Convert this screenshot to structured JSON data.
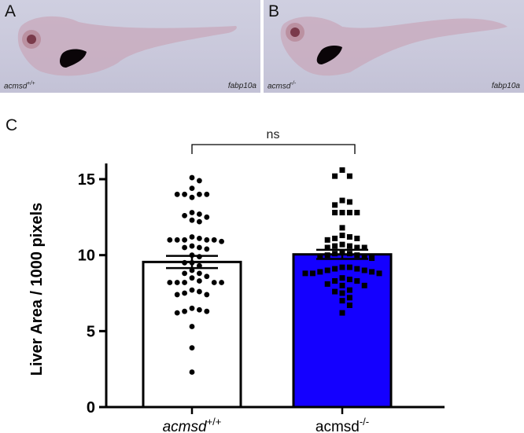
{
  "panels": [
    {
      "letter": "A",
      "genotype": "acmsd",
      "genotype_sup": "+/+",
      "probe": "fabp10a"
    },
    {
      "letter": "B",
      "genotype": "acmsd",
      "genotype_sup": "-/-",
      "probe": "fabp10a"
    }
  ],
  "chart_panel_letter": "C",
  "chart_data": {
    "type": "bar",
    "ylabel": "Liver Area / 1000 pixels",
    "xlabel": "",
    "ylim": [
      0,
      16
    ],
    "yticks": [
      0,
      5,
      10,
      15
    ],
    "ytick_labels": [
      "0",
      "5",
      "10",
      "15"
    ],
    "categories": [
      "acmsd+/+",
      "acmsd-/-"
    ],
    "category_labels": [
      {
        "base": "acmsd",
        "sup": "+/+",
        "italic": true
      },
      {
        "base": "acmsd",
        "sup": "-/-",
        "italic": false
      }
    ],
    "values": [
      9.55,
      10.05
    ],
    "sem": [
      0.4,
      0.3
    ],
    "bar_colors": [
      "#ffffff",
      "#1400ff"
    ],
    "marker_shapes": [
      "circle",
      "square"
    ],
    "significance": {
      "label": "ns",
      "between": [
        0,
        1
      ]
    },
    "points": [
      [
        15.1,
        14.9,
        14.4,
        14.0,
        14.0,
        14.0,
        14.0,
        13.8,
        12.8,
        12.7,
        12.6,
        12.5,
        12.3,
        12.2,
        11.2,
        11.1,
        11.0,
        11.0,
        11.0,
        11.0,
        11.0,
        10.9,
        10.6,
        10.5,
        10.5,
        10.4,
        10.0,
        9.9,
        9.5,
        9.5,
        9.3,
        9.0,
        8.8,
        8.8,
        8.6,
        8.5,
        8.3,
        8.2,
        8.2,
        8.2,
        8.2,
        8.2,
        7.7,
        7.6,
        7.5,
        7.4,
        7.4,
        6.5,
        6.4,
        6.3,
        6.3,
        6.2,
        5.3,
        3.9,
        2.3
      ],
      [
        15.6,
        15.2,
        15.2,
        13.6,
        13.5,
        13.3,
        12.8,
        12.8,
        12.8,
        12.8,
        11.8,
        11.3,
        11.2,
        11.1,
        11.1,
        11.0,
        10.7,
        10.6,
        10.6,
        10.5,
        10.5,
        10.5,
        10.2,
        10.1,
        10.1,
        10.0,
        10.0,
        9.9,
        9.9,
        9.8,
        9.2,
        9.2,
        9.1,
        9.1,
        9.0,
        9.0,
        8.9,
        8.9,
        8.8,
        8.8,
        8.8,
        8.5,
        8.4,
        8.3,
        8.3,
        8.1,
        8.0,
        8.0,
        7.7,
        7.6,
        7.5,
        7.2,
        7.0,
        6.7,
        6.2
      ]
    ]
  }
}
